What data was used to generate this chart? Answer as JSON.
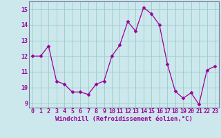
{
  "x": [
    0,
    1,
    2,
    3,
    4,
    5,
    6,
    7,
    8,
    9,
    10,
    11,
    12,
    13,
    14,
    15,
    16,
    17,
    18,
    19,
    20,
    21,
    22,
    23
  ],
  "y": [
    12.0,
    12.0,
    12.65,
    10.4,
    10.2,
    9.7,
    9.7,
    9.55,
    10.2,
    10.4,
    12.0,
    12.7,
    14.2,
    13.6,
    15.1,
    14.7,
    14.0,
    11.5,
    9.75,
    9.3,
    9.65,
    8.9,
    11.1,
    11.35
  ],
  "line_color": "#990099",
  "marker_color": "#990099",
  "bg_color": "#cce8ec",
  "grid_color": "#99cccc",
  "xlabel": "Windchill (Refroidissement éolien,°C)",
  "xlabel_color": "#990099",
  "xlabel_fontsize": 6.5,
  "tick_fontsize": 6,
  "tick_color": "#990099",
  "ylim": [
    8.7,
    15.5
  ],
  "yticks": [
    9,
    10,
    11,
    12,
    13,
    14,
    15
  ],
  "xticks": [
    0,
    1,
    2,
    3,
    4,
    5,
    6,
    7,
    8,
    9,
    10,
    11,
    12,
    13,
    14,
    15,
    16,
    17,
    18,
    19,
    20,
    21,
    22,
    23
  ],
  "marker_size": 2.5,
  "line_width": 0.9
}
